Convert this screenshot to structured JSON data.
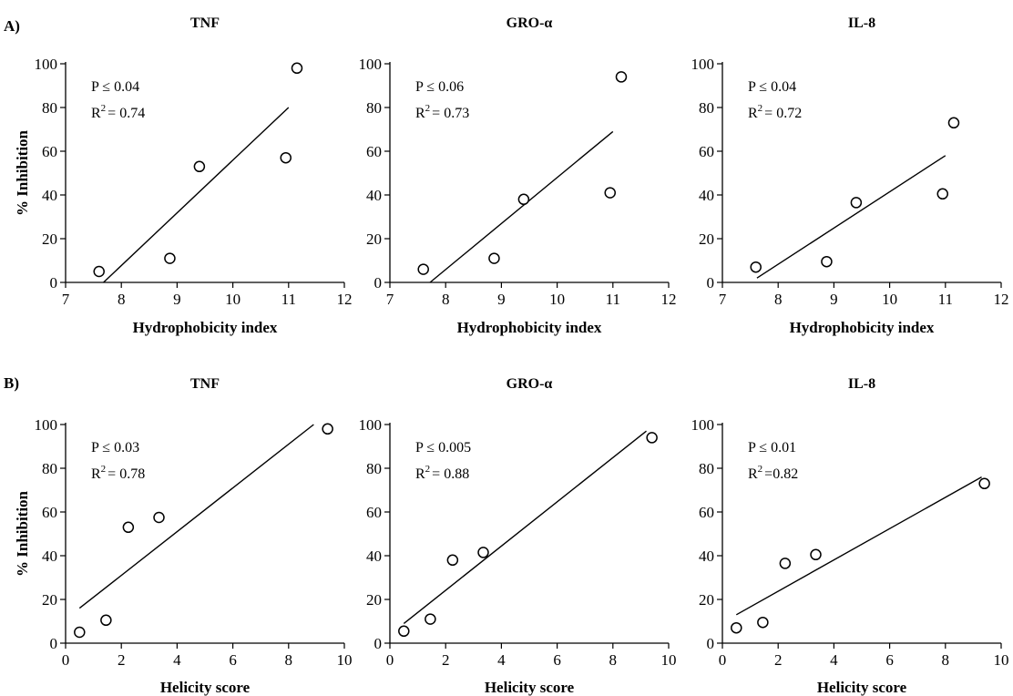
{
  "panel_labels": [
    "A)",
    "B)"
  ],
  "chart_data": [
    {
      "type": "scatter",
      "row": 0,
      "col": 0,
      "title": "TNF",
      "xlabel": "Hydrophobicity index",
      "ylabel": "% Inhibition",
      "xlim": [
        7,
        12
      ],
      "ylim": [
        0,
        100
      ],
      "xticks": [
        7,
        8,
        9,
        10,
        11,
        12
      ],
      "yticks": [
        0,
        20,
        40,
        60,
        80,
        100
      ],
      "points": [
        [
          7.6,
          5
        ],
        [
          8.87,
          11
        ],
        [
          9.4,
          53
        ],
        [
          10.95,
          57
        ],
        [
          11.15,
          98
        ]
      ],
      "fit": [
        [
          7.68,
          0
        ],
        [
          11.0,
          80
        ]
      ],
      "p_text": "P ≤ 0.04",
      "r2_value": "= 0.74"
    },
    {
      "type": "scatter",
      "row": 0,
      "col": 1,
      "title": "GRO-α",
      "xlabel": "Hydrophobicity index",
      "ylabel": "",
      "xlim": [
        7,
        12
      ],
      "ylim": [
        0,
        100
      ],
      "xticks": [
        7,
        8,
        9,
        10,
        11,
        12
      ],
      "yticks": [
        0,
        20,
        40,
        60,
        80,
        100
      ],
      "points": [
        [
          7.6,
          6
        ],
        [
          8.87,
          11
        ],
        [
          9.4,
          38
        ],
        [
          10.95,
          41
        ],
        [
          11.15,
          94
        ]
      ],
      "fit": [
        [
          7.72,
          0
        ],
        [
          11.0,
          69
        ]
      ],
      "p_text": "P ≤ 0.06",
      "r2_value": "= 0.73"
    },
    {
      "type": "scatter",
      "row": 0,
      "col": 2,
      "title": "IL-8",
      "xlabel": "Hydrophobicity index",
      "ylabel": "",
      "xlim": [
        7,
        12
      ],
      "ylim": [
        0,
        100
      ],
      "xticks": [
        7,
        8,
        9,
        10,
        11,
        12
      ],
      "yticks": [
        0,
        20,
        40,
        60,
        80,
        100
      ],
      "points": [
        [
          7.6,
          7
        ],
        [
          8.87,
          9.5
        ],
        [
          9.4,
          36.5
        ],
        [
          10.95,
          40.5
        ],
        [
          11.15,
          73
        ]
      ],
      "fit": [
        [
          7.62,
          2
        ],
        [
          11.0,
          58
        ]
      ],
      "p_text": "P ≤ 0.04",
      "r2_value": "= 0.72"
    },
    {
      "type": "scatter",
      "row": 1,
      "col": 0,
      "title": "TNF",
      "xlabel": "Helicity score",
      "ylabel": "% Inhibition",
      "xlim": [
        0,
        10
      ],
      "ylim": [
        0,
        100
      ],
      "xticks": [
        0,
        2,
        4,
        6,
        8,
        10
      ],
      "yticks": [
        0,
        20,
        40,
        60,
        80,
        100
      ],
      "points": [
        [
          0.5,
          5
        ],
        [
          1.45,
          10.5
        ],
        [
          2.25,
          53
        ],
        [
          3.35,
          57.5
        ],
        [
          9.4,
          98
        ]
      ],
      "fit": [
        [
          0.5,
          16
        ],
        [
          8.9,
          100
        ]
      ],
      "p_text": "P ≤ 0.03",
      "r2_value": "= 0.78"
    },
    {
      "type": "scatter",
      "row": 1,
      "col": 1,
      "title": "GRO-α",
      "xlabel": "Helicity score",
      "ylabel": "",
      "xlim": [
        0,
        10
      ],
      "ylim": [
        0,
        100
      ],
      "xticks": [
        0,
        2,
        4,
        6,
        8,
        10
      ],
      "yticks": [
        0,
        20,
        40,
        60,
        80,
        100
      ],
      "points": [
        [
          0.5,
          5.5
        ],
        [
          1.45,
          11
        ],
        [
          2.25,
          38
        ],
        [
          3.35,
          41.5
        ],
        [
          9.4,
          94
        ]
      ],
      "fit": [
        [
          0.5,
          9
        ],
        [
          9.2,
          97
        ]
      ],
      "p_text": "P ≤ 0.005",
      "r2_value": "= 0.88"
    },
    {
      "type": "scatter",
      "row": 1,
      "col": 2,
      "title": "IL-8",
      "xlabel": "Helicity score",
      "ylabel": "",
      "xlim": [
        0,
        10
      ],
      "ylim": [
        0,
        100
      ],
      "xticks": [
        0,
        2,
        4,
        6,
        8,
        10
      ],
      "yticks": [
        0,
        20,
        40,
        60,
        80,
        100
      ],
      "points": [
        [
          0.5,
          7
        ],
        [
          1.45,
          9.5
        ],
        [
          2.25,
          36.5
        ],
        [
          3.35,
          40.5
        ],
        [
          9.4,
          73
        ]
      ],
      "fit": [
        [
          0.5,
          13
        ],
        [
          9.3,
          76
        ]
      ],
      "p_text": "P ≤ 0.01",
      "r2_value": "=0.82"
    }
  ]
}
